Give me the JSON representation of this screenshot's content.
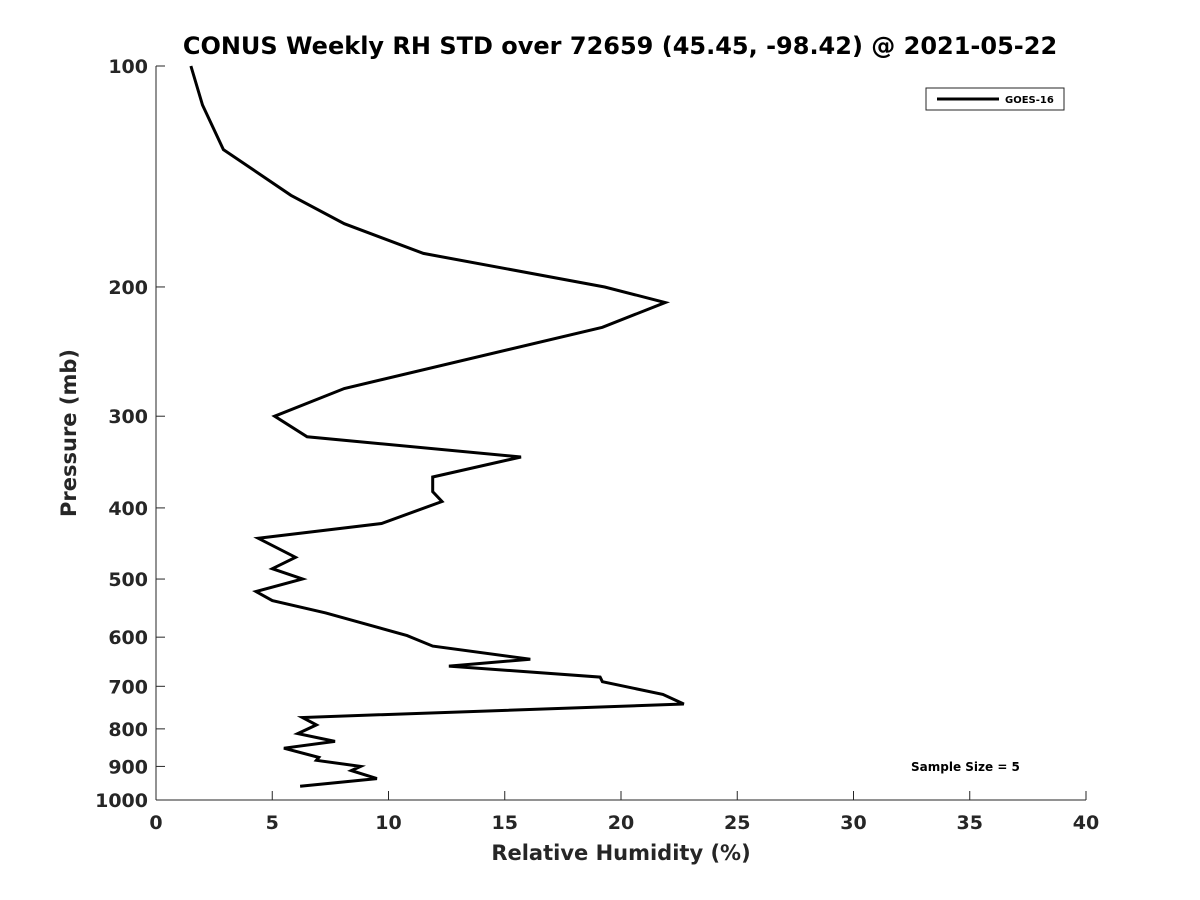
{
  "chart_data": {
    "type": "line",
    "title": "CONUS Weekly RH STD over 72659 (45.45, -98.42) @ 2021-05-22",
    "xlabel": "Relative Humidity (%)",
    "ylabel": "Pressure (mb)",
    "xlim": [
      0,
      40
    ],
    "ylim": [
      100,
      1000
    ],
    "yscale": "log",
    "y_reversed": true,
    "grid": false,
    "legend_position": "top-right",
    "x_ticks": [
      0,
      5,
      10,
      15,
      20,
      25,
      30,
      35,
      40
    ],
    "y_ticks": [
      100,
      200,
      300,
      400,
      500,
      600,
      700,
      800,
      900,
      1000
    ],
    "series": [
      {
        "name": "GOES-16",
        "color": "#000000",
        "x": [
          1.5,
          2.0,
          2.9,
          5.8,
          8.1,
          11.5,
          19.3,
          21.9,
          19.2,
          8.1,
          5.1,
          6.5,
          15.7,
          11.9,
          11.9,
          12.3,
          9.7,
          4.4,
          6.0,
          5.0,
          6.3,
          4.3,
          5.0,
          7.3,
          10.8,
          11.9,
          16.1,
          12.6,
          19.1,
          19.2,
          21.8,
          22.7,
          6.3,
          6.9,
          6.1,
          7.7,
          5.5,
          7.0,
          6.9,
          8.8,
          8.4,
          9.5,
          6.2
        ],
        "y": [
          100,
          113,
          130,
          150,
          164,
          180,
          200,
          210,
          227,
          275,
          300,
          320,
          341,
          363,
          380,
          392,
          420,
          440,
          467,
          484,
          500,
          520,
          535,
          556,
          597,
          617,
          643,
          657,
          680,
          690,
          718,
          740,
          772,
          790,
          812,
          832,
          850,
          875,
          883,
          900,
          912,
          935,
          958
        ]
      }
    ],
    "annotation": "Sample Size = 5"
  }
}
